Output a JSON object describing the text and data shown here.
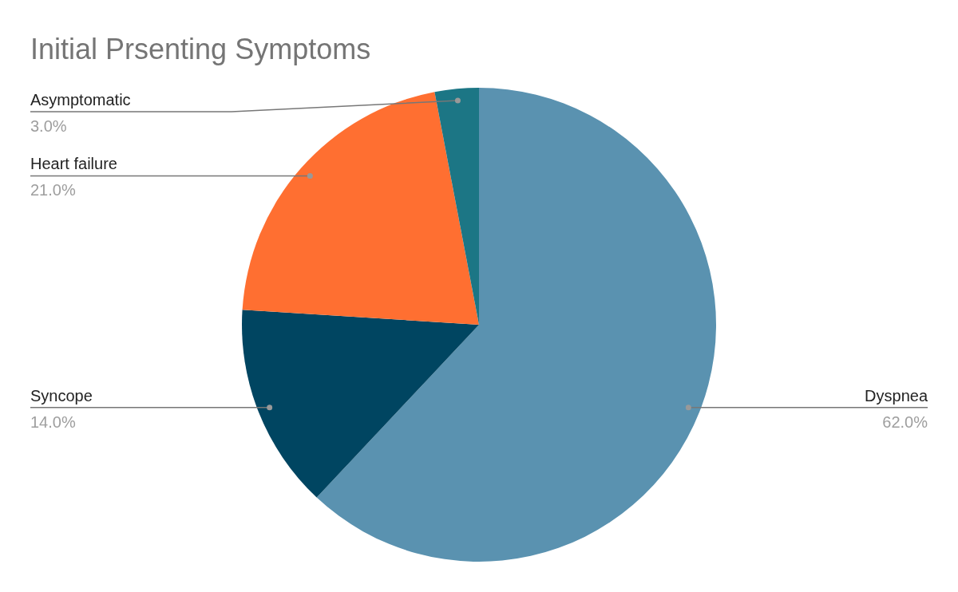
{
  "chart_data": {
    "type": "pie",
    "title": "Initial Prsenting Symptoms",
    "categories": [
      "Dyspnea",
      "Syncope",
      "Heart failure",
      "Asymptomatic"
    ],
    "values": [
      62,
      14,
      21,
      3
    ],
    "colors": [
      "#5a92b0",
      "#004561",
      "#ff6f31",
      "#1c7685"
    ],
    "value_labels": [
      "62.0%",
      "14.0%",
      "21.0%",
      "3.0%"
    ]
  }
}
